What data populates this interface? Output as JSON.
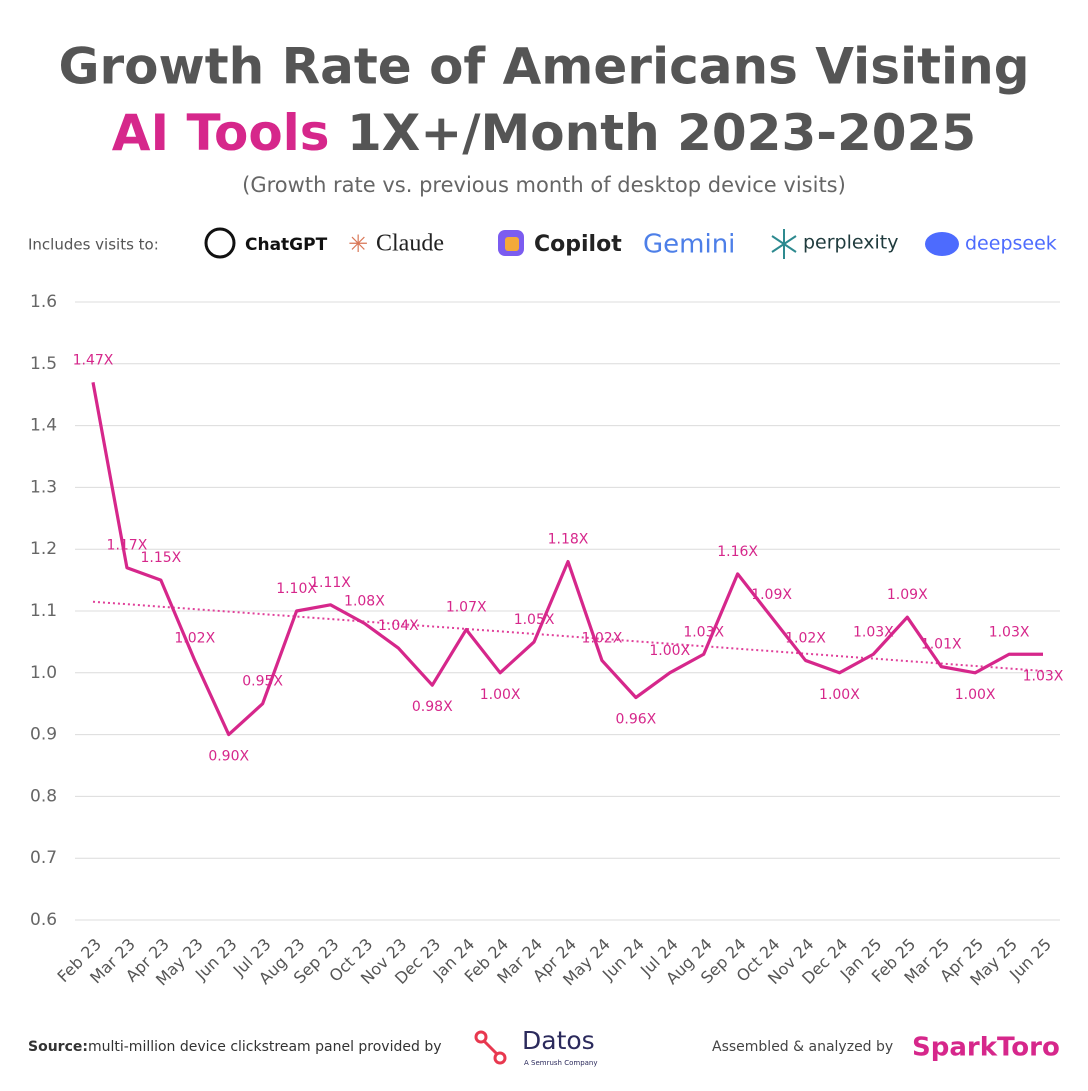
{
  "header": {
    "title_line1": "Growth Rate of Americans Visiting",
    "title_highlight": "AI Tools",
    "title_line2_rest": "1X+/Month 2023-2025",
    "subtitle": "(Growth rate vs. previous month of desktop device visits)",
    "includes_label": "Includes visits to:",
    "brands": [
      "ChatGPT",
      "Claude",
      "Copilot",
      "Gemini",
      "perplexity",
      "deepseek"
    ]
  },
  "chart_data": {
    "type": "line",
    "categories": [
      "Feb 23",
      "Mar 23",
      "Apr 23",
      "May 23",
      "Jun 23",
      "Jul 23",
      "Aug 23",
      "Sep 23",
      "Oct 23",
      "Nov 23",
      "Dec 23",
      "Jan 24",
      "Feb 24",
      "Mar 24",
      "Apr 24",
      "May 24",
      "Jun 24",
      "Jul 24",
      "Aug 24",
      "Sep 24",
      "Oct 24",
      "Nov 24",
      "Dec 24",
      "Jan 25",
      "Feb 25",
      "Mar 25",
      "Apr 25",
      "May 25",
      "Jun 25"
    ],
    "series": [
      {
        "name": "Growth rate",
        "color": "#d6278b",
        "values": [
          1.47,
          1.17,
          1.15,
          1.02,
          0.9,
          0.95,
          1.1,
          1.11,
          1.08,
          1.04,
          0.98,
          1.07,
          1.0,
          1.05,
          1.18,
          1.02,
          0.96,
          1.0,
          1.03,
          1.16,
          1.09,
          1.02,
          1.0,
          1.03,
          1.09,
          1.01,
          1.0,
          1.03,
          1.03
        ],
        "value_labels": [
          "1.47X",
          "1.17X",
          "1.15X",
          "1.02X",
          "0.90X",
          "0.95X",
          "1.10X",
          "1.11X",
          "1.08X",
          "1.04X",
          "0.98X",
          "1.07X",
          "1.00X",
          "1.05X",
          "1.18X",
          "1.02X",
          "0.96X",
          "1.00X",
          "1.03X",
          "1.16X",
          "1.09X",
          "1.02X",
          "1.00X",
          "1.03X",
          "1.09X",
          "1.01X",
          "1.00X",
          "1.03X",
          "1.03X"
        ]
      }
    ],
    "trendline": {
      "color": "#e0409a",
      "values": [
        1.115,
        1.003
      ]
    },
    "ylim": [
      0.6,
      1.6
    ],
    "yticks": [
      0.6,
      0.7,
      0.8,
      0.9,
      {
        "value": 1,
        "label": "1.0"
      },
      1.1,
      1.2,
      1.3,
      1.4,
      1.5,
      1.6
    ],
    "grid": true
  },
  "footer": {
    "source_label": "Source:",
    "source_text": "multi-million device clickstream panel provided by",
    "datos": "Datos",
    "datos_sub": "A Semrush Company",
    "assembled": "Assembled & analyzed by",
    "sparktoro": "SparkToro"
  }
}
